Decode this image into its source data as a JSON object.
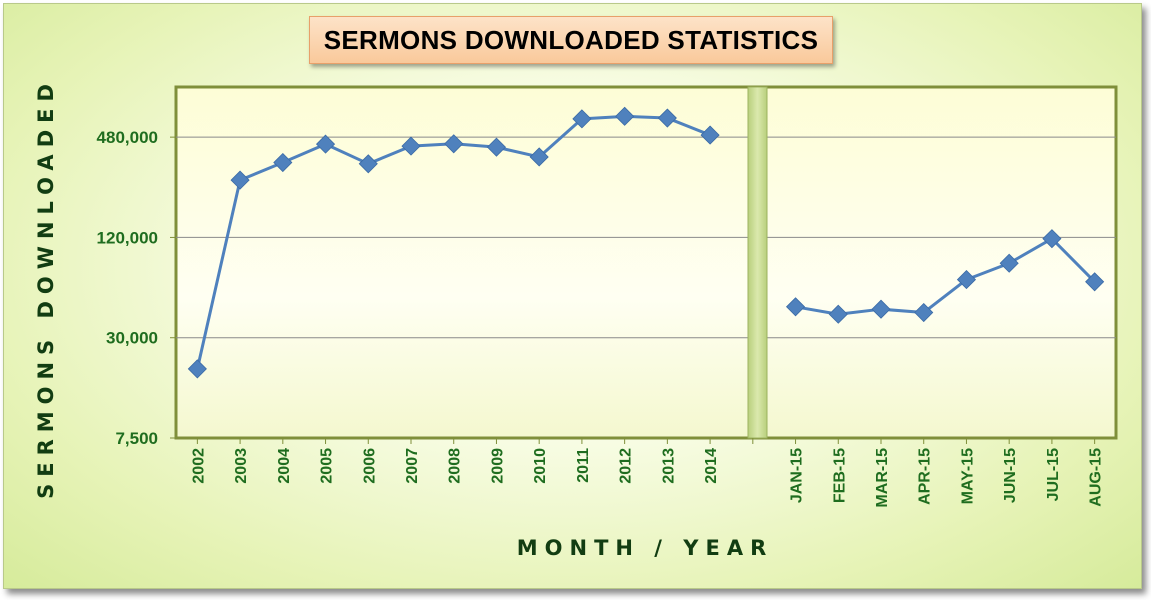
{
  "colors": {
    "series": "#4f81bd",
    "tick_text": "#1f6d1f",
    "axis_title": "#123d12",
    "plot_border": "#7f8f3a",
    "title_box": "#fbd4ac"
  },
  "chart_data": {
    "type": "line",
    "title": "SERMONS DOWNLOADED STATISTICS",
    "xlabel": "MONTH / YEAR",
    "ylabel": "SERMONS DOWNLOADED",
    "y_scale": "log2",
    "ylim": [
      7500,
      960000
    ],
    "y_ticks": [
      7500,
      30000,
      120000,
      480000
    ],
    "y_tick_labels": [
      "7,500",
      "30,000",
      "120,000",
      "480,000"
    ],
    "grid": true,
    "categories": [
      "2002",
      "2003",
      "2004",
      "2005",
      "2006",
      "2007",
      "2008",
      "2009",
      "2010",
      "2011",
      "2012",
      "2013",
      "2014",
      "",
      "JAN-15",
      "FEB-15",
      "MAR-15",
      "APR-15",
      "MAY-15",
      "JUN-15",
      "JUL-15",
      "AUG-15"
    ],
    "series": [
      {
        "values": [
          19500,
          265000,
          338000,
          436000,
          332000,
          424000,
          438000,
          418000,
          365000,
          618000,
          640000,
          625000,
          494000,
          null,
          46000,
          41500,
          44500,
          42500,
          67000,
          84000,
          118000,
          65000
        ]
      }
    ]
  }
}
